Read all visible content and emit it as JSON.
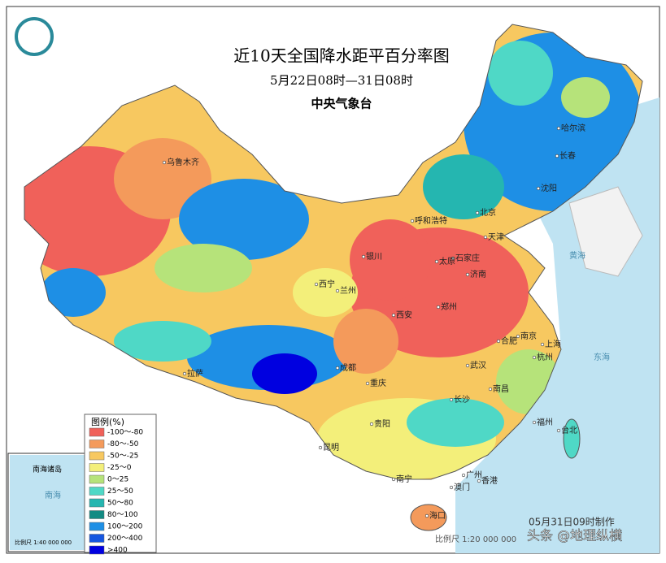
{
  "header": {
    "title": "近10天全国降水距平百分率图",
    "subtitle": "5月22日08时—31日08时",
    "agency": "中央气象台"
  },
  "legend": {
    "title": "图例(%)",
    "items": [
      {
        "label": "-100～-80",
        "color": "#f0615a"
      },
      {
        "label": "-80～-50",
        "color": "#f49a5b"
      },
      {
        "label": "-50～-25",
        "color": "#f7c860"
      },
      {
        "label": "-25～0",
        "color": "#f3ef7a"
      },
      {
        "label": "0～25",
        "color": "#b6e37a"
      },
      {
        "label": "25～50",
        "color": "#4fd8c6"
      },
      {
        "label": "50～80",
        "color": "#25b6b0"
      },
      {
        "label": "80～100",
        "color": "#138b83"
      },
      {
        "label": "100～200",
        "color": "#1e8fe5"
      },
      {
        "label": "200～400",
        "color": "#1556e0"
      },
      {
        "label": ">400",
        "color": "#0000e0"
      }
    ]
  },
  "cities": [
    "乌鲁木齐",
    "哈尔滨",
    "长春",
    "沈阳",
    "呼和浩特",
    "北京",
    "天津",
    "石家庄",
    "太原",
    "银川",
    "西宁",
    "兰州",
    "济南",
    "郑州",
    "西安",
    "合肥",
    "南京",
    "上海",
    "杭州",
    "成都",
    "重庆",
    "武汉",
    "拉萨",
    "长沙",
    "南昌",
    "贵阳",
    "福州",
    "台北",
    "昆明",
    "南宁",
    "广州",
    "香港",
    "澳门",
    "海口"
  ],
  "seas": [
    "黄海",
    "东海",
    "南海"
  ],
  "inset": {
    "title": "南海诸岛",
    "scale": "比例尺 1:40 000 000"
  },
  "footer": {
    "made": "05月31日09时制作",
    "scale": "比例尺 1:20 000 000",
    "watermark": "头条 @地理纵横"
  }
}
